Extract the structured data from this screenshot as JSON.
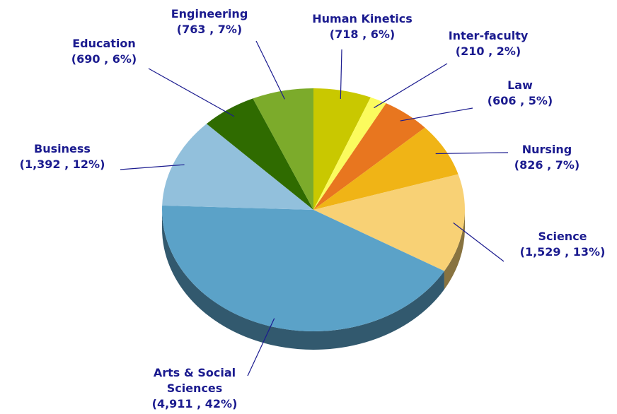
{
  "chart_data": {
    "type": "pie",
    "categories": [
      "Human Kinetics",
      "Inter-faculty",
      "Law",
      "Nursing",
      "Science",
      "Arts & Social Sciences",
      "Business",
      "Education",
      "Engineering"
    ],
    "values": [
      718,
      210,
      606,
      826,
      1529,
      4911,
      1392,
      690,
      763
    ],
    "value_labels": [
      "(718 , 6%)",
      "(210 , 2%)",
      "(606 , 5%)",
      "(826 , 7%)",
      "(1,529 , 13%)",
      "(4,911 , 42%)",
      "(1,392 , 12%)",
      "(690 , 6%)",
      "(763 , 7%)"
    ],
    "colors": [
      "#c9c800",
      "#fbfb5e",
      "#e8761f",
      "#f0b416",
      "#f8d175",
      "#5ba2c8",
      "#92c0dc",
      "#2f6b00",
      "#7cab2b"
    ]
  }
}
